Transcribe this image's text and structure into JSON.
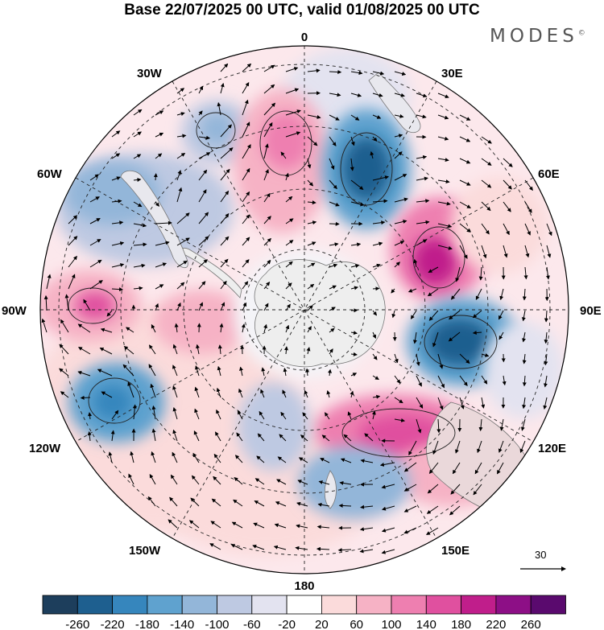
{
  "title": "Base 22/07/2025 00 UTC, valid 01/08/2025 00 UTC",
  "brand": "MODES",
  "brand_mark": "©",
  "longitude_labels": {
    "top": "0",
    "bottom": "180",
    "left": "90W",
    "right": "90E",
    "upper_left_30": "30W",
    "upper_left_60": "60W",
    "lower_left_120": "120W",
    "lower_left_150": "150W",
    "upper_right_30": "30E",
    "upper_right_60": "60E",
    "lower_right_120": "120E",
    "lower_right_150": "150E"
  },
  "wind_reference": {
    "value": "30"
  },
  "colorbar": {
    "labels": [
      "-260",
      "-220",
      "-180",
      "-140",
      "-100",
      "-60",
      "-20",
      "20",
      "60",
      "100",
      "140",
      "180",
      "220",
      "260"
    ],
    "colors": [
      "#1d3e5c",
      "#1e5f8f",
      "#3686bd",
      "#5fa2cf",
      "#93b6d9",
      "#bec9e2",
      "#e3e3f0",
      "#ffffff",
      "#fbdbdb",
      "#f6b2c5",
      "#ee7fb0",
      "#e0509f",
      "#c01e8b",
      "#8d0f86",
      "#5a0a6e"
    ]
  },
  "anomalies": [
    {
      "name": "neg",
      "color": "#1e5f8f"
    },
    {
      "name": "pos",
      "color": "#e0509f"
    }
  ]
}
